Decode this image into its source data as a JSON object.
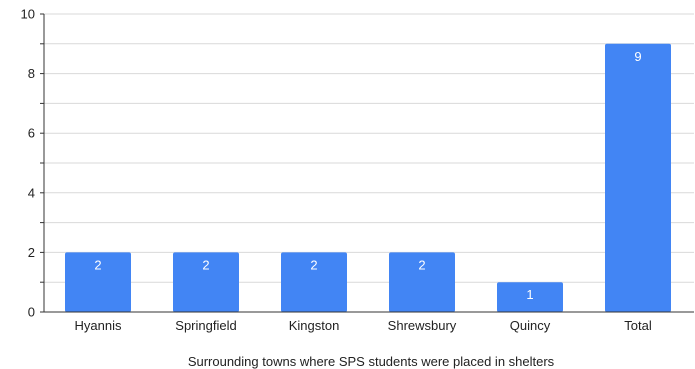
{
  "chart_data": {
    "type": "bar",
    "title": "",
    "xlabel": "Surrounding towns where SPS students were placed in shelters",
    "ylabel": "",
    "categories": [
      "Hyannis",
      "Springfield",
      "Kingston",
      "Shrewsbury",
      "Quincy",
      "Total"
    ],
    "values": [
      2,
      2,
      2,
      2,
      1,
      9
    ],
    "data_labels": [
      "2",
      "2",
      "2",
      "2",
      "1",
      "9"
    ],
    "ylim": [
      0,
      10
    ],
    "yticks": [
      0,
      2,
      4,
      6,
      8,
      10
    ],
    "ytick_labels": [
      "0",
      "2",
      "4",
      "6",
      "8",
      "10"
    ],
    "minor_grid_step": 1,
    "grid": true,
    "legend": "none",
    "colors": {
      "bar": "#4285f4",
      "grid": "#d9d9d9",
      "axis": "#333333"
    }
  }
}
